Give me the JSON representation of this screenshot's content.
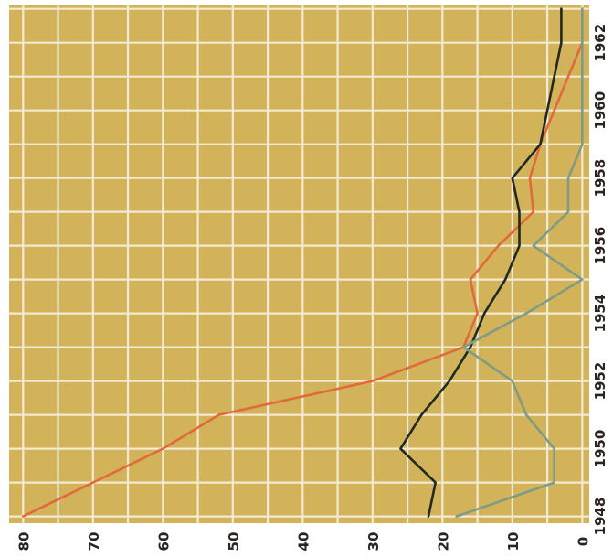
{
  "chart_data": {
    "type": "line",
    "title": "",
    "xlabel": "",
    "ylabel": "",
    "orientation": "rotated-90-clockwise",
    "x": [
      1948,
      1949,
      1950,
      1951,
      1952,
      1953,
      1954,
      1955,
      1956,
      1957,
      1958,
      1959,
      1960,
      1961,
      1962,
      1963
    ],
    "xlim": [
      1947.8,
      1963.1
    ],
    "ylim": [
      -1,
      82
    ],
    "xticks": [
      "1948",
      "1950",
      "1952",
      "1954",
      "1956",
      "1958",
      "1960",
      "1962"
    ],
    "yticks": [
      "80",
      "70",
      "60",
      "50",
      "40",
      "30",
      "20",
      "10",
      "0"
    ],
    "grid": true,
    "background_color": "#d3b35a",
    "grid_color": "#f3ead2",
    "series": [
      {
        "color": "#e06a3c",
        "values": [
          80,
          70,
          60,
          52,
          30,
          17,
          15,
          16,
          12,
          7,
          7.5,
          6,
          4,
          2,
          0,
          0
        ]
      },
      {
        "color": "#1f2a24",
        "values": [
          22,
          21,
          26,
          23,
          19,
          16,
          14,
          11,
          9,
          9,
          10,
          6,
          5,
          4,
          3,
          3
        ]
      },
      {
        "color": "#7e9b86",
        "values": [
          18,
          4,
          4,
          8,
          10,
          17,
          8,
          0,
          7,
          2,
          2,
          0,
          0,
          0,
          0,
          0
        ]
      }
    ]
  }
}
